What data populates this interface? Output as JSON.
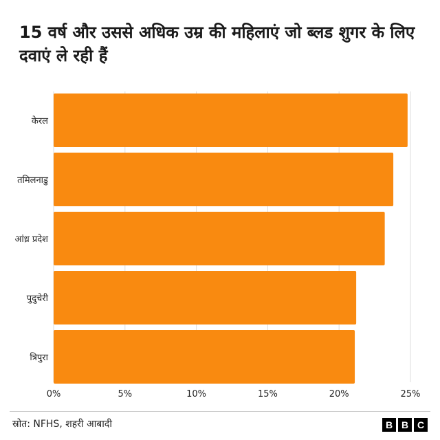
{
  "chart_data": {
    "type": "bar",
    "orientation": "horizontal",
    "title": "15 वर्ष और उससे अधिक उम्र की महिलाएं जो ब्लड शुगर के लिए दवाएं ले रही हैं",
    "categories": [
      "केरल",
      "तमिलनाडु",
      "आंध्र प्रदेश",
      "पुदुचेरी",
      "त्रिपुरा"
    ],
    "values": [
      24.8,
      23.8,
      23.2,
      21.2,
      21.1
    ],
    "unit": "%",
    "xlim": [
      0,
      25
    ],
    "xticks": [
      0,
      5,
      10,
      15,
      20,
      25
    ],
    "xtick_labels": [
      "0%",
      "5%",
      "10%",
      "15%",
      "20%",
      "25%"
    ],
    "xlabel": "",
    "ylabel": "",
    "grid": true,
    "bar_color": "#f98a10",
    "grid_color": "#dddddd"
  },
  "footer": {
    "source": "स्रोत: NFHS, शहरी आबादी",
    "brand": [
      "B",
      "B",
      "C"
    ]
  }
}
